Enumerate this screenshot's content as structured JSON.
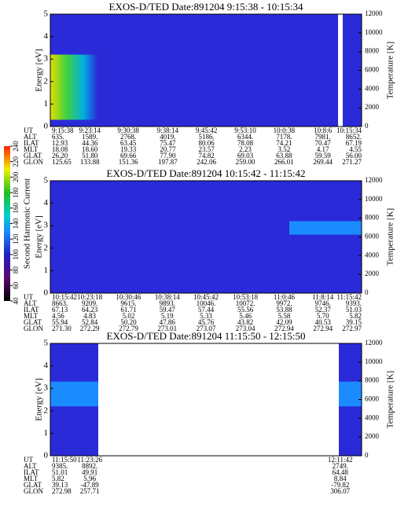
{
  "chart_data": [
    {
      "type": "heatmap",
      "title": "EXOS-D/TED  Date:891204  9:15:38 - 10:15:34",
      "ylabel": "Energy [eV]",
      "ylim": [
        0,
        5
      ],
      "yticks": [
        0,
        1,
        2,
        3,
        4,
        5
      ],
      "y2label": "Temperature [K]",
      "y2lim": [
        0,
        12000
      ],
      "y2ticks": [
        0,
        2000,
        4000,
        6000,
        8000,
        10000,
        12000
      ],
      "xlim": [
        "9:15:38",
        "10:15:34"
      ],
      "ephemeris": [
        {
          "label": "UT",
          "values": [
            "9:15:38",
            "9:23:14",
            "9:30:38",
            "9:38:14",
            "9:45:42",
            "9:53:10",
            "10:0:38",
            "10:8:6",
            "10:15:34"
          ]
        },
        {
          "label": "ALT",
          "values": [
            "635.",
            "1589.",
            "2768.",
            "4019.",
            "5186.",
            "6344.",
            "7178.",
            "7981.",
            "8652."
          ]
        },
        {
          "label": "ILAT",
          "values": [
            "12.93",
            "44.36",
            "63.45",
            "75.47",
            "80.06",
            "78.08",
            "74.21",
            "70.47",
            "67.19"
          ]
        },
        {
          "label": "MLT",
          "values": [
            "18.08",
            "18.60",
            "19.33",
            "20.77",
            "23.57",
            "2.23",
            "3.52",
            "4.17",
            "4.55"
          ]
        },
        {
          "label": "GLAT",
          "values": [
            "26.20",
            "51.80",
            "69.66",
            "77.90",
            "74.82",
            "69.03",
            "63.88",
            "59.59",
            "56.00"
          ]
        },
        {
          "label": "GLON",
          "values": [
            "125.65",
            "133.88",
            "151.36",
            "197.87",
            "242.06",
            "259.00",
            "266.01",
            "269.44",
            "271.27"
          ]
        }
      ]
    },
    {
      "type": "heatmap",
      "title": "EXOS-D/TED  Date:891204  10:15:42 - 11:15:42",
      "ylabel": "Energy [eV]",
      "ylim": [
        0,
        5
      ],
      "yticks": [
        0,
        1,
        2,
        3,
        4,
        5
      ],
      "y2label": "Temperature [K]",
      "y2lim": [
        0,
        12000
      ],
      "y2ticks": [
        0,
        2000,
        4000,
        6000,
        8000,
        10000,
        12000
      ],
      "xlim": [
        "10:15:42",
        "11:15:42"
      ],
      "colorbar": {
        "label": "Second Harmonic Current",
        "ticks": [
          40,
          60,
          80,
          100,
          120,
          140,
          160,
          180,
          200,
          220,
          240
        ]
      },
      "ephemeris": [
        {
          "label": "UT",
          "values": [
            "10:15:42",
            "10:23:18",
            "10:30:46",
            "10:38:14",
            "10:45:42",
            "10:53:18",
            "11:0:46",
            "11:8:14",
            "11:15:42"
          ]
        },
        {
          "label": "ALT",
          "values": [
            "8663.",
            "9209.",
            "9615.",
            "9893.",
            "10046.",
            "10072.",
            "9972.",
            "9746.",
            "9393."
          ]
        },
        {
          "label": "ILAT",
          "values": [
            "67.13",
            "64.23",
            "61.71",
            "59.47",
            "57.44",
            "55.56",
            "53.88",
            "52.37",
            "51.03"
          ]
        },
        {
          "label": "MLT",
          "values": [
            "4.56",
            "4.83",
            "5.02",
            "5.19",
            "5.33",
            "5.46",
            "5.58",
            "5.70",
            "5.82"
          ]
        },
        {
          "label": "GLAT",
          "values": [
            "55.94",
            "52.84",
            "50.20",
            "47.86",
            "45.76",
            "43.82",
            "42.09",
            "40.53",
            "39.15"
          ]
        },
        {
          "label": "GLON",
          "values": [
            "271.30",
            "272.29",
            "272.79",
            "273.01",
            "273.07",
            "273.04",
            "272.94",
            "272.94",
            "272.97"
          ]
        }
      ]
    },
    {
      "type": "heatmap",
      "title": "EXOS-D/TED  Date:891204  11:15:50 - 12:15:50",
      "ylabel": "Energy [eV]",
      "ylim": [
        0,
        5
      ],
      "yticks": [
        0,
        1,
        2,
        3,
        4,
        5
      ],
      "y2label": "Temperature [K]",
      "y2lim": [
        0,
        12000
      ],
      "y2ticks": [
        0,
        2000,
        4000,
        6000,
        8000,
        10000,
        12000
      ],
      "xlim": [
        "11:15:50",
        "12:15:50"
      ],
      "ephemeris": [
        {
          "label": "UT",
          "values": [
            "11:15:50",
            "11:23:26",
            "12:11:42"
          ]
        },
        {
          "label": "ALT",
          "values": [
            "9385.",
            "8892.",
            "2749."
          ]
        },
        {
          "label": "ILAT",
          "values": [
            "51.01",
            "49.91",
            "64.48"
          ]
        },
        {
          "label": "MLT",
          "values": [
            "5.82",
            "5.96",
            "8.84"
          ]
        },
        {
          "label": "GLAT",
          "values": [
            "39.13",
            "-47.89",
            "-79.82"
          ]
        },
        {
          "label": "GLON",
          "values": [
            "272.98",
            "257.71",
            "306.07"
          ]
        }
      ]
    }
  ]
}
